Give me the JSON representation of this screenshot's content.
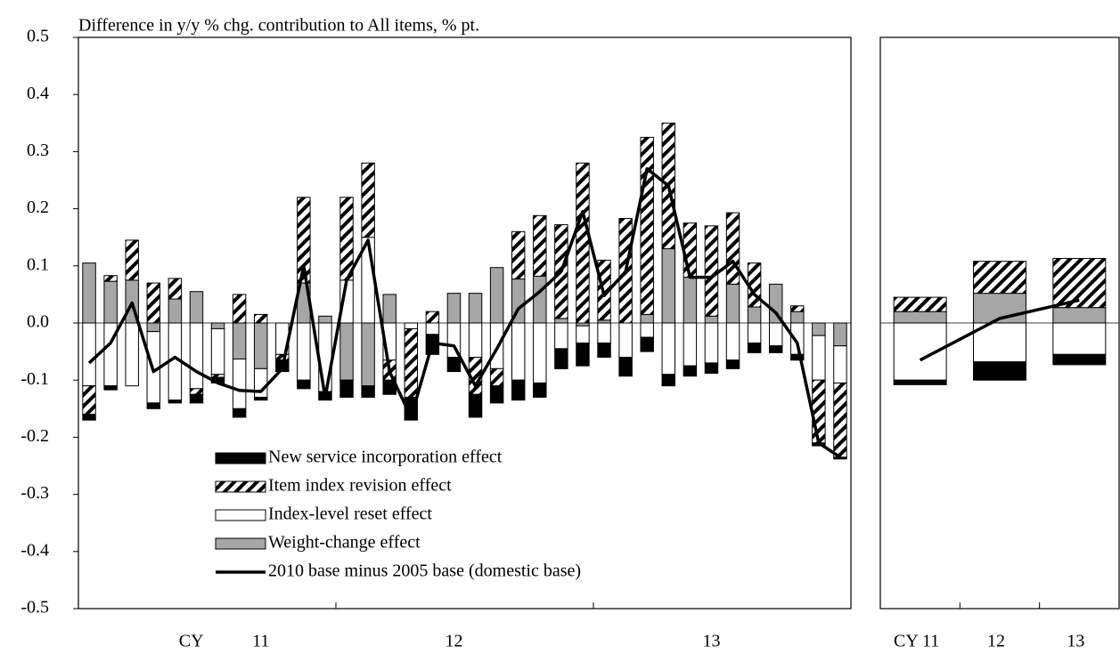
{
  "chart_data": [
    {
      "type": "bar",
      "stacked": true,
      "title": "Difference in y/y % chg. contribution to All items, % pt.",
      "category_prefix": "CY",
      "categories": [
        null,
        null,
        null,
        null,
        null,
        null,
        null,
        null,
        "11",
        null,
        null,
        null,
        null,
        null,
        null,
        null,
        null,
        "12",
        null,
        null,
        null,
        null,
        null,
        null,
        null,
        null,
        null,
        null,
        null,
        "13",
        null,
        null,
        null,
        null,
        null,
        null
      ],
      "ylim": [
        -0.5,
        0.5
      ],
      "yticks": [
        -0.5,
        -0.4,
        -0.3,
        -0.2,
        -0.1,
        {
          "value": 0,
          "label": "0.0"
        },
        0.1,
        0.2,
        0.3,
        0.4,
        0.5
      ],
      "legend": "lower left",
      "series": [
        {
          "name": "New service incorporation effect",
          "color": "#000000",
          "values": [
            -0.01,
            -0.007,
            0,
            -0.01,
            -0.005,
            -0.015,
            -0.01,
            -0.015,
            -0.005,
            -0.02,
            -0.015,
            -0.015,
            -0.03,
            -0.02,
            -0.025,
            -0.04,
            -0.035,
            -0.025,
            -0.04,
            -0.03,
            -0.035,
            -0.025,
            -0.035,
            -0.04,
            -0.025,
            -0.033,
            -0.025,
            -0.02,
            -0.018,
            -0.018,
            -0.015,
            -0.017,
            -0.012,
            -0.01,
            -0.005,
            -0.003
          ]
        },
        {
          "name": "Item index revision effect",
          "color": "#000000",
          "pattern": "hatch",
          "values": [
            -0.05,
            0.01,
            0.07,
            0.07,
            0.036,
            -0.01,
            -0.005,
            0.05,
            0.015,
            -0.01,
            0.15,
            0,
            0.145,
            0.13,
            -0.035,
            -0.12,
            0.02,
            0,
            -0.065,
            -0.03,
            0.083,
            0.106,
            0.164,
            0.28,
            0.105,
            0.183,
            0.31,
            0.22,
            0.095,
            0.158,
            0.125,
            0.077,
            0,
            0.01,
            -0.11,
            -0.13
          ]
        },
        {
          "name": "Index-level reset effect",
          "color": "#ffffff",
          "values": [
            -0.11,
            -0.11,
            -0.11,
            -0.125,
            -0.135,
            -0.115,
            -0.08,
            -0.087,
            -0.05,
            -0.055,
            -0.1,
            -0.12,
            0.075,
            0.15,
            -0.065,
            -0.01,
            -0.02,
            -0.06,
            -0.06,
            -0.08,
            -0.1,
            -0.105,
            -0.045,
            -0.03,
            -0.035,
            -0.06,
            -0.025,
            -0.09,
            -0.075,
            -0.07,
            -0.065,
            -0.035,
            -0.04,
            -0.055,
            -0.078,
            -0.065
          ]
        },
        {
          "name": "Weight-change effect",
          "color": "#a6a6a6",
          "values": [
            0.105,
            0.073,
            0.075,
            -0.015,
            0.042,
            0.055,
            -0.01,
            -0.063,
            -0.08,
            0,
            0.07,
            0.012,
            -0.1,
            -0.11,
            0.05,
            0,
            0,
            0.052,
            0.052,
            0.097,
            0.077,
            0.082,
            0.008,
            -0.005,
            0.005,
            0,
            0.015,
            0.13,
            0.08,
            0.012,
            0.068,
            0.028,
            0.068,
            0.02,
            -0.022,
            -0.04
          ]
        },
        {
          "name": "2010 base minus 2005 base (domestic base)",
          "color": "#000000",
          "type": "line",
          "values": [
            -0.07,
            -0.035,
            0.035,
            -0.085,
            -0.06,
            -0.085,
            -0.105,
            -0.118,
            -0.12,
            -0.08,
            0.1,
            -0.13,
            0.075,
            0.145,
            -0.085,
            -0.165,
            -0.035,
            -0.04,
            -0.11,
            -0.045,
            0.025,
            0.055,
            0.09,
            0.195,
            0.048,
            0.09,
            0.27,
            0.24,
            0.08,
            0.08,
            0.108,
            0.05,
            0.018,
            -0.035,
            -0.21,
            -0.235
          ]
        }
      ]
    },
    {
      "type": "bar",
      "stacked": true,
      "categories": [
        "CY 11",
        "12",
        "13"
      ],
      "ylim": [
        -0.5,
        0.5
      ],
      "series": [
        {
          "color": "#000000",
          "values": [
            -0.008,
            -0.032,
            -0.018
          ]
        },
        {
          "color": "#000000",
          "pattern": "hatch",
          "values": [
            0.025,
            0.056,
            0.086
          ]
        },
        {
          "color": "#ffffff",
          "values": [
            -0.1,
            -0.068,
            -0.055
          ]
        },
        {
          "color": "#a6a6a6",
          "values": [
            0.02,
            0.052,
            0.027
          ]
        },
        {
          "color": "#000000",
          "type": "line",
          "values": [
            -0.065,
            0.008,
            0.04
          ]
        }
      ]
    }
  ]
}
